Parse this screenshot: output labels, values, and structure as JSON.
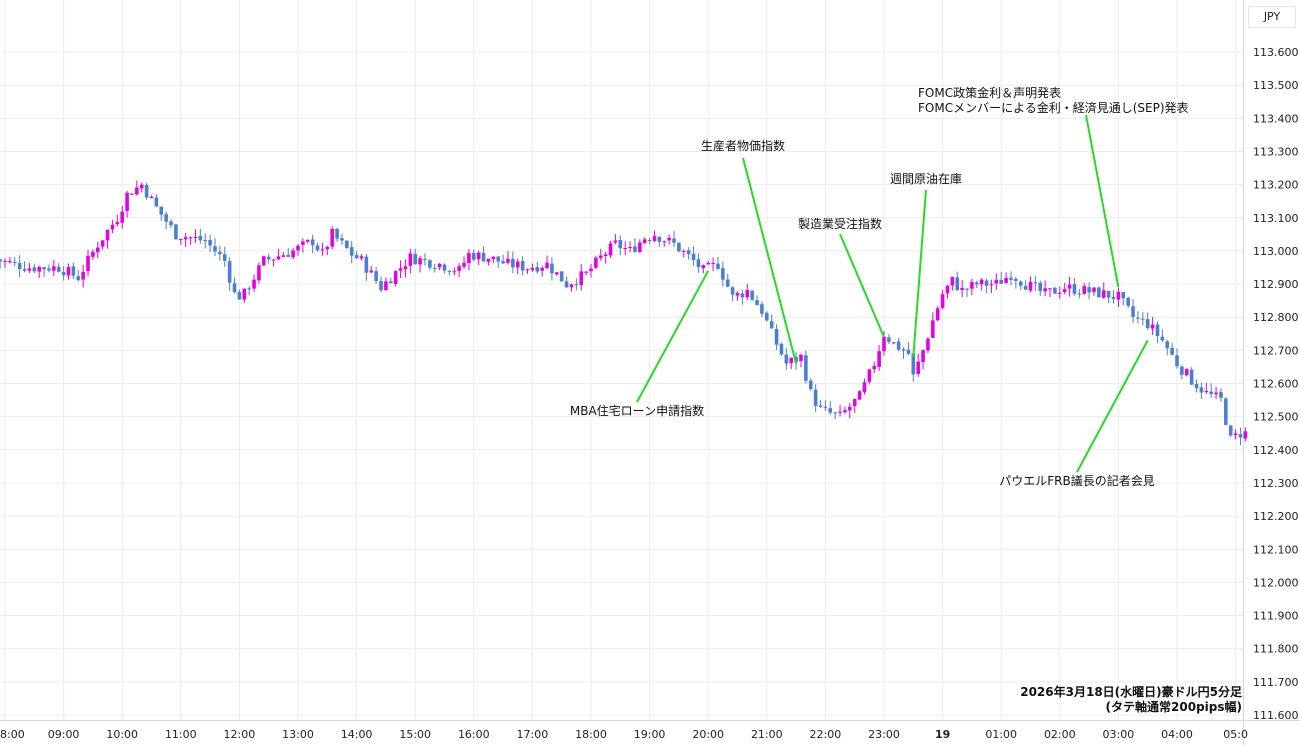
{
  "chart_data": {
    "type": "candlestick",
    "currency": "JPY",
    "ylim": [
      111.58,
      113.68
    ],
    "y_ticks": [
      "113.600",
      "113.500",
      "113.400",
      "113.300",
      "113.200",
      "113.100",
      "113.000",
      "112.900",
      "112.800",
      "112.700",
      "112.600",
      "112.500",
      "112.400",
      "112.300",
      "112.200",
      "112.100",
      "112.000",
      "111.900",
      "111.800",
      "111.700",
      "111.600"
    ],
    "x_ticks": [
      {
        "label": "8:00",
        "bold": false
      },
      {
        "label": "09:00",
        "bold": false
      },
      {
        "label": "10:00",
        "bold": false
      },
      {
        "label": "11:00",
        "bold": false
      },
      {
        "label": "12:00",
        "bold": false
      },
      {
        "label": "13:00",
        "bold": false
      },
      {
        "label": "14:00",
        "bold": false
      },
      {
        "label": "15:00",
        "bold": false
      },
      {
        "label": "16:00",
        "bold": false
      },
      {
        "label": "17:00",
        "bold": false
      },
      {
        "label": "18:00",
        "bold": false
      },
      {
        "label": "19:00",
        "bold": false
      },
      {
        "label": "20:00",
        "bold": false
      },
      {
        "label": "21:00",
        "bold": false
      },
      {
        "label": "22:00",
        "bold": false
      },
      {
        "label": "23:00",
        "bold": false
      },
      {
        "label": "19",
        "bold": true
      },
      {
        "label": "01:00",
        "bold": false
      },
      {
        "label": "02:00",
        "bold": false
      },
      {
        "label": "03:00",
        "bold": false
      },
      {
        "label": "04:00",
        "bold": false
      },
      {
        "label": "05:0",
        "bold": false
      }
    ],
    "grid": true,
    "colors": {
      "up": "#e600e6",
      "down": "#4a7fd4",
      "annotation_line": "#22dd22",
      "grid": "#ececec"
    },
    "keypoints": [
      [
        "07:50",
        112.98
      ],
      [
        "08:00",
        112.97
      ],
      [
        "08:30",
        112.95
      ],
      [
        "09:00",
        112.95
      ],
      [
        "09:20",
        112.92
      ],
      [
        "09:40",
        113.02
      ],
      [
        "10:00",
        113.1
      ],
      [
        "10:10",
        113.17
      ],
      [
        "10:25",
        113.2
      ],
      [
        "10:40",
        113.13
      ],
      [
        "11:00",
        113.05
      ],
      [
        "11:30",
        113.03
      ],
      [
        "11:50",
        112.97
      ],
      [
        "12:00",
        112.87
      ],
      [
        "12:08",
        112.86
      ],
      [
        "12:30",
        112.97
      ],
      [
        "13:00",
        113.0
      ],
      [
        "13:20",
        113.03
      ],
      [
        "13:30",
        112.99
      ],
      [
        "13:40",
        113.05
      ],
      [
        "13:50",
        113.02
      ],
      [
        "14:00",
        112.99
      ],
      [
        "14:10",
        112.97
      ],
      [
        "14:30",
        112.89
      ],
      [
        "14:50",
        112.95
      ],
      [
        "15:00",
        112.98
      ],
      [
        "15:30",
        112.96
      ],
      [
        "15:50",
        112.94
      ],
      [
        "16:00",
        112.99
      ],
      [
        "16:20",
        112.98
      ],
      [
        "16:40",
        112.96
      ],
      [
        "17:00",
        112.95
      ],
      [
        "17:20",
        112.96
      ],
      [
        "17:40",
        112.9
      ],
      [
        "18:00",
        112.93
      ],
      [
        "18:15",
        112.98
      ],
      [
        "18:30",
        113.02
      ],
      [
        "18:45",
        113.0
      ],
      [
        "19:00",
        113.04
      ],
      [
        "19:10",
        113.05
      ],
      [
        "19:30",
        113.02
      ],
      [
        "19:50",
        112.97
      ],
      [
        "20:00",
        112.94
      ],
      [
        "20:15",
        112.96
      ],
      [
        "20:30",
        112.86
      ],
      [
        "20:45",
        112.88
      ],
      [
        "21:00",
        112.82
      ],
      [
        "21:10",
        112.75
      ],
      [
        "21:25",
        112.66
      ],
      [
        "21:40",
        112.68
      ],
      [
        "21:50",
        112.57
      ],
      [
        "22:00",
        112.52
      ],
      [
        "22:20",
        112.5
      ],
      [
        "22:40",
        112.56
      ],
      [
        "22:55",
        112.66
      ],
      [
        "23:05",
        112.75
      ],
      [
        "23:15",
        112.72
      ],
      [
        "23:30",
        112.69
      ],
      [
        "23:35",
        112.62
      ],
      [
        "23:45",
        112.7
      ],
      [
        "23:55",
        112.79
      ],
      [
        "00:05",
        112.87
      ],
      [
        "00:15",
        112.91
      ],
      [
        "00:25",
        112.88
      ],
      [
        "00:40",
        112.9
      ],
      [
        "01:00",
        112.9
      ],
      [
        "01:15",
        112.93
      ],
      [
        "01:30",
        112.9
      ],
      [
        "01:50",
        112.87
      ],
      [
        "02:10",
        112.89
      ],
      [
        "02:30",
        112.88
      ],
      [
        "02:50",
        112.87
      ],
      [
        "03:05",
        112.86
      ],
      [
        "03:20",
        112.8
      ],
      [
        "03:35",
        112.78
      ],
      [
        "03:50",
        112.73
      ],
      [
        "04:05",
        112.66
      ],
      [
        "04:20",
        112.61
      ],
      [
        "04:35",
        112.57
      ],
      [
        "04:50",
        112.55
      ],
      [
        "05:00",
        112.43
      ],
      [
        "05:10",
        112.45
      ]
    ],
    "annotations": [
      {
        "lines": [
          "MBA住宅ローン申請指数"
        ],
        "time": "20:00",
        "value": 112.94
      },
      {
        "lines": [
          "生産者物価指数"
        ],
        "time": "21:30",
        "value": 112.66
      },
      {
        "lines": [
          "製造業受注指数"
        ],
        "time": "23:00",
        "value": 112.74
      },
      {
        "lines": [
          "週間原油在庫"
        ],
        "time": "23:30",
        "value": 112.68
      },
      {
        "lines": [
          "FOMC政策金利＆声明発表",
          "FOMCメンバーによる金利・経済見通し(SEP)発表"
        ],
        "time": "03:00",
        "value": 112.89
      },
      {
        "lines": [
          "パウエルFRB議長の記者会見"
        ],
        "time": "03:30",
        "value": 112.73
      }
    ]
  },
  "info": {
    "line1": "2026年3月18日(水曜日)豪ドル円5分足",
    "line2": "(タテ軸通常200pips幅)"
  }
}
